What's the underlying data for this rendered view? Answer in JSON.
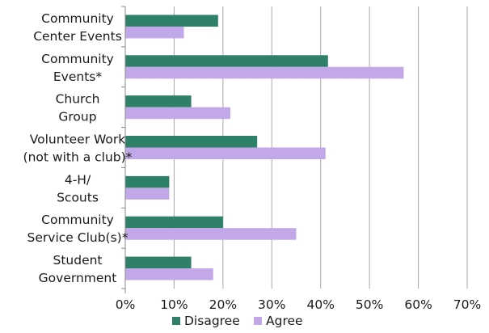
{
  "chart_data": {
    "type": "bar",
    "orientation": "horizontal",
    "categories": [
      [
        "Community",
        "Center Events"
      ],
      [
        "Community",
        "Events*"
      ],
      [
        "Church",
        "Group"
      ],
      [
        "Volunteer Work",
        "(not with a club)*"
      ],
      [
        "4-H/",
        "Scouts"
      ],
      [
        "Community",
        "Service Club(s)*"
      ],
      [
        "Student",
        "Government"
      ]
    ],
    "series": [
      {
        "name": "Disagree",
        "color": "#2e8068",
        "values": [
          19,
          41.5,
          13.5,
          27,
          9,
          20,
          13.5
        ]
      },
      {
        "name": "Agree",
        "color": "#c2a8e8",
        "values": [
          12,
          57,
          21.5,
          41,
          9,
          35,
          18
        ]
      }
    ],
    "xlim": [
      0,
      70
    ],
    "xticks": [
      0,
      10,
      20,
      30,
      40,
      50,
      60,
      70
    ],
    "tick_format": "percent",
    "grid": "vertical",
    "legend_position": "bottom",
    "title": "",
    "xlabel": "",
    "ylabel": ""
  }
}
